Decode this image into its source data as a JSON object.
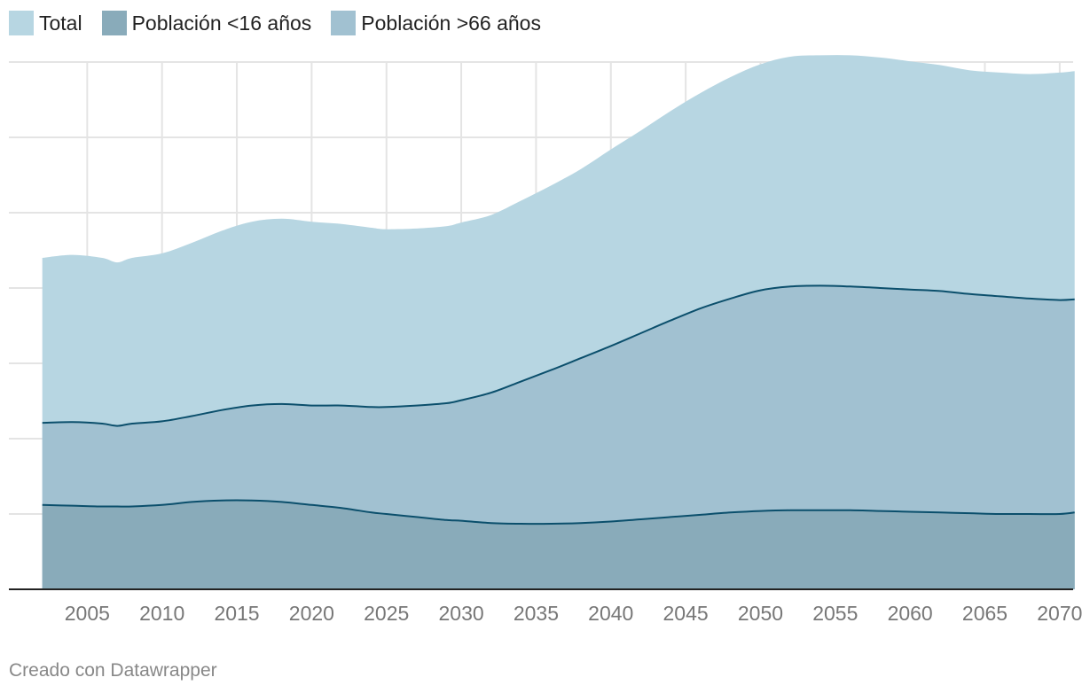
{
  "legend": {
    "total_label": "Total",
    "under16_label": "Población <16 años",
    "over66_label": "Población >66 años"
  },
  "footer": {
    "credit": "Creado con Datawrapper"
  },
  "colors": {
    "total": "#b7d6e2",
    "over66": "#a1c1d1",
    "under16": "#89abba",
    "line": "#0b4f6c",
    "grid": "#e4e4e4",
    "axis": "#222222",
    "tick_text": "#777777"
  },
  "chart_data": {
    "type": "area",
    "stacked": true,
    "x_tick_labels": [
      "2005",
      "2010",
      "2015",
      "2020",
      "2025",
      "2030",
      "2035",
      "2040",
      "2045",
      "2050",
      "2055",
      "2060",
      "2065",
      "2070"
    ],
    "x": [
      2002,
      2004,
      2006,
      2007,
      2008,
      2010,
      2012,
      2014,
      2016,
      2018,
      2020,
      2022,
      2024,
      2025,
      2027,
      2029,
      2030,
      2032,
      2034,
      2036,
      2038,
      2040,
      2042,
      2044,
      2046,
      2048,
      2050,
      2052,
      2054,
      2056,
      2058,
      2060,
      2062,
      2064,
      2066,
      2068,
      2070,
      2071
    ],
    "ylim": [
      0,
      7
    ],
    "grid": "horizontal and vertical",
    "legend_position": "top-left",
    "series": [
      {
        "name": "Población <16 años",
        "values": [
          1.12,
          1.11,
          1.1,
          1.1,
          1.1,
          1.12,
          1.16,
          1.18,
          1.18,
          1.16,
          1.12,
          1.08,
          1.02,
          1,
          0.96,
          0.92,
          0.91,
          0.88,
          0.87,
          0.87,
          0.88,
          0.9,
          0.93,
          0.96,
          0.99,
          1.02,
          1.04,
          1.05,
          1.05,
          1.05,
          1.04,
          1.03,
          1.02,
          1.01,
          1,
          1,
          1,
          1.02
        ]
      },
      {
        "name": "Población >66 años",
        "values": [
          1.09,
          1.11,
          1.1,
          1.07,
          1.1,
          1.11,
          1.14,
          1.2,
          1.26,
          1.3,
          1.32,
          1.36,
          1.4,
          1.42,
          1.48,
          1.55,
          1.6,
          1.73,
          1.89,
          2.04,
          2.19,
          2.33,
          2.47,
          2.61,
          2.74,
          2.84,
          2.93,
          2.97,
          2.98,
          2.97,
          2.96,
          2.95,
          2.94,
          2.91,
          2.89,
          2.86,
          2.84,
          2.83
        ]
      },
      {
        "name": "Total",
        "values": [
          2.19,
          2.22,
          2.2,
          2.17,
          2.2,
          2.23,
          2.3,
          2.38,
          2.44,
          2.46,
          2.44,
          2.41,
          2.38,
          2.36,
          2.35,
          2.35,
          2.36,
          2.36,
          2.4,
          2.45,
          2.51,
          2.61,
          2.69,
          2.78,
          2.86,
          2.94,
          3,
          3.05,
          3.06,
          3.07,
          3.06,
          3.03,
          3,
          2.97,
          2.97,
          2.98,
          3.02,
          3.03
        ]
      }
    ]
  }
}
